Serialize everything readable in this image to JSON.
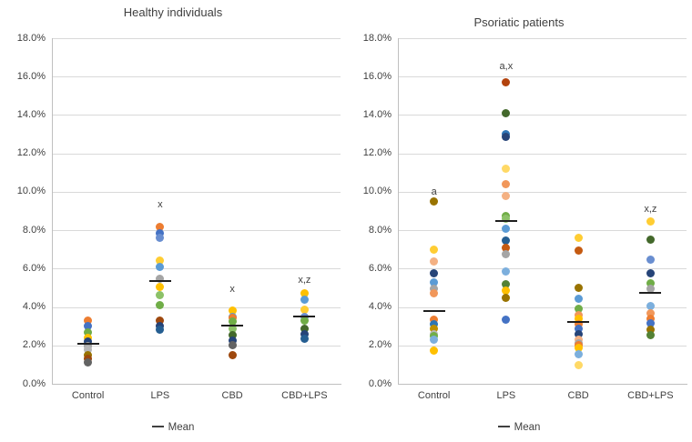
{
  "figure": {
    "background": "#FFFFFF",
    "text_color": "#404040",
    "gridline_color": "#D9D9D9",
    "axis_line_color": "#BFBFBF",
    "mean_line_color": "#1F1F1F"
  },
  "chart_data": [
    {
      "type": "scatter",
      "title": "Healthy individuals",
      "ylim": [
        0,
        18
      ],
      "ytick_step": 2,
      "ytick_labels": [
        "0.0%",
        "2.0%",
        "4.0%",
        "6.0%",
        "8.0%",
        "10.0%",
        "12.0%",
        "14.0%",
        "16.0%",
        "18.0%"
      ],
      "grid": true,
      "legend": {
        "label": "Mean",
        "marker": "dash",
        "position": "bottom"
      },
      "groups": [
        {
          "label": "Control",
          "mean": 2.1,
          "annotation": null,
          "points": [
            {
              "v": 3.3,
              "c": "#ED7D31"
            },
            {
              "v": 3.0,
              "c": "#4472C4"
            },
            {
              "v": 2.7,
              "c": "#70AD47"
            },
            {
              "v": 2.4,
              "c": "#FFC000"
            },
            {
              "v": 2.2,
              "c": "#264478"
            },
            {
              "v": 1.95,
              "c": "#A5A5A5"
            },
            {
              "v": 1.8,
              "c": "#B7B7B7"
            },
            {
              "v": 1.5,
              "c": "#997300"
            },
            {
              "v": 1.3,
              "c": "#9E480E"
            },
            {
              "v": 1.1,
              "c": "#636363"
            }
          ]
        },
        {
          "label": "LPS",
          "mean": 5.35,
          "annotation": {
            "text": "x",
            "v": 9.35
          },
          "points": [
            {
              "v": 8.15,
              "c": "#ED7D31"
            },
            {
              "v": 7.85,
              "c": "#4472C4"
            },
            {
              "v": 7.6,
              "c": "#698ED0"
            },
            {
              "v": 6.4,
              "c": "#FFCD33"
            },
            {
              "v": 6.1,
              "c": "#5B9BD5"
            },
            {
              "v": 5.45,
              "c": "#A5A5A5"
            },
            {
              "v": 5.05,
              "c": "#FFC000"
            },
            {
              "v": 4.6,
              "c": "#8CC168"
            },
            {
              "v": 4.1,
              "c": "#70AD47"
            },
            {
              "v": 3.3,
              "c": "#9E480E"
            },
            {
              "v": 3.0,
              "c": "#264478"
            },
            {
              "v": 2.8,
              "c": "#255E91"
            }
          ]
        },
        {
          "label": "CBD",
          "mean": 3.05,
          "annotation": {
            "text": "x",
            "v": 4.95
          },
          "points": [
            {
              "v": 3.8,
              "c": "#FFC000"
            },
            {
              "v": 3.5,
              "c": "#5B9BD5"
            },
            {
              "v": 3.45,
              "c": "#ED7D31"
            },
            {
              "v": 3.25,
              "c": "#70AD47"
            },
            {
              "v": 2.85,
              "c": "#8CC168"
            },
            {
              "v": 2.55,
              "c": "#43682B"
            },
            {
              "v": 2.25,
              "c": "#264478"
            },
            {
              "v": 2.0,
              "c": "#636363"
            },
            {
              "v": 1.5,
              "c": "#9E480E"
            }
          ]
        },
        {
          "label": "CBD+LPS",
          "mean": 3.5,
          "annotation": {
            "text": "x,z",
            "v": 5.4
          },
          "points": [
            {
              "v": 4.7,
              "c": "#FFC000"
            },
            {
              "v": 4.4,
              "c": "#5B9BD5"
            },
            {
              "v": 3.85,
              "c": "#FFCD33"
            },
            {
              "v": 3.5,
              "c": "#698ED0"
            },
            {
              "v": 3.3,
              "c": "#70AD47"
            },
            {
              "v": 2.85,
              "c": "#43682B"
            },
            {
              "v": 2.6,
              "c": "#264478"
            },
            {
              "v": 2.35,
              "c": "#255E91"
            }
          ]
        }
      ]
    },
    {
      "type": "scatter",
      "title": "Psoriatic patients",
      "ylim": [
        0,
        18
      ],
      "ytick_step": 2,
      "ytick_labels": [
        "0.0%",
        "2.0%",
        "4.0%",
        "6.0%",
        "8.0%",
        "10.0%",
        "12.0%",
        "14.0%",
        "16.0%",
        "18.0%"
      ],
      "grid": true,
      "legend": {
        "label": "Mean",
        "marker": "dash",
        "position": "bottom"
      },
      "groups": [
        {
          "label": "Control",
          "mean": 3.8,
          "annotation": {
            "text": "a",
            "v": 10.0
          },
          "points": [
            {
              "v": 9.5,
              "c": "#997300"
            },
            {
              "v": 7.0,
              "c": "#FFCD33"
            },
            {
              "v": 6.35,
              "c": "#F4B183"
            },
            {
              "v": 5.75,
              "c": "#264478"
            },
            {
              "v": 5.3,
              "c": "#5B9BD5"
            },
            {
              "v": 4.95,
              "c": "#A5A5A5"
            },
            {
              "v": 4.7,
              "c": "#F1975A"
            },
            {
              "v": 3.35,
              "c": "#ED7D31"
            },
            {
              "v": 3.1,
              "c": "#2E75B6"
            },
            {
              "v": 2.85,
              "c": "#BF8F00"
            },
            {
              "v": 2.6,
              "c": "#B7B7B7"
            },
            {
              "v": 2.5,
              "c": "#70AD47"
            },
            {
              "v": 2.3,
              "c": "#7CAFDD"
            },
            {
              "v": 1.75,
              "c": "#FFC000"
            }
          ]
        },
        {
          "label": "LPS",
          "mean": 8.5,
          "annotation": {
            "text": "a,x",
            "v": 16.55
          },
          "points": [
            {
              "v": 15.7,
              "c": "#B3430E"
            },
            {
              "v": 14.1,
              "c": "#43682B"
            },
            {
              "v": 13.0,
              "c": "#2E75B6"
            },
            {
              "v": 12.85,
              "c": "#264478"
            },
            {
              "v": 11.2,
              "c": "#FFD966"
            },
            {
              "v": 10.4,
              "c": "#F1975A"
            },
            {
              "v": 9.8,
              "c": "#F4B183"
            },
            {
              "v": 8.75,
              "c": "#70AD47"
            },
            {
              "v": 8.6,
              "c": "#8CC168"
            },
            {
              "v": 8.1,
              "c": "#5B9BD5"
            },
            {
              "v": 7.45,
              "c": "#255E91"
            },
            {
              "v": 7.1,
              "c": "#C55A11"
            },
            {
              "v": 6.75,
              "c": "#A5A5A5"
            },
            {
              "v": 5.85,
              "c": "#7CAFDD"
            },
            {
              "v": 5.2,
              "c": "#548235"
            },
            {
              "v": 4.85,
              "c": "#FFC000"
            },
            {
              "v": 4.5,
              "c": "#997300"
            },
            {
              "v": 3.35,
              "c": "#4472C4"
            }
          ]
        },
        {
          "label": "CBD",
          "mean": 3.2,
          "annotation": null,
          "points": [
            {
              "v": 7.6,
              "c": "#FFCD33"
            },
            {
              "v": 6.95,
              "c": "#C55A11"
            },
            {
              "v": 5.0,
              "c": "#997300"
            },
            {
              "v": 4.45,
              "c": "#5B9BD5"
            },
            {
              "v": 3.9,
              "c": "#70AD47"
            },
            {
              "v": 3.6,
              "c": "#F1975A"
            },
            {
              "v": 3.4,
              "c": "#FFC000"
            },
            {
              "v": 3.1,
              "c": "#ED7D31"
            },
            {
              "v": 2.85,
              "c": "#4472C4"
            },
            {
              "v": 2.6,
              "c": "#264478"
            },
            {
              "v": 2.3,
              "c": "#F4B183"
            },
            {
              "v": 2.1,
              "c": "#A5A5A5"
            },
            {
              "v": 2.0,
              "c": "#ED7D31"
            },
            {
              "v": 1.85,
              "c": "#FFC000"
            },
            {
              "v": 1.55,
              "c": "#7CAFDD"
            },
            {
              "v": 0.95,
              "c": "#FFD966"
            }
          ]
        },
        {
          "label": "CBD+LPS",
          "mean": 4.75,
          "annotation": {
            "text": "x,z",
            "v": 9.1
          },
          "points": [
            {
              "v": 8.45,
              "c": "#FFCD33"
            },
            {
              "v": 7.5,
              "c": "#43682B"
            },
            {
              "v": 6.45,
              "c": "#698ED0"
            },
            {
              "v": 5.75,
              "c": "#264478"
            },
            {
              "v": 5.25,
              "c": "#70AD47"
            },
            {
              "v": 4.95,
              "c": "#A5A5A5"
            },
            {
              "v": 4.05,
              "c": "#7CAFDD"
            },
            {
              "v": 3.65,
              "c": "#F1975A"
            },
            {
              "v": 3.4,
              "c": "#ED7D31"
            },
            {
              "v": 3.15,
              "c": "#4472C4"
            },
            {
              "v": 2.8,
              "c": "#997300"
            },
            {
              "v": 2.55,
              "c": "#548235"
            }
          ]
        }
      ]
    }
  ]
}
